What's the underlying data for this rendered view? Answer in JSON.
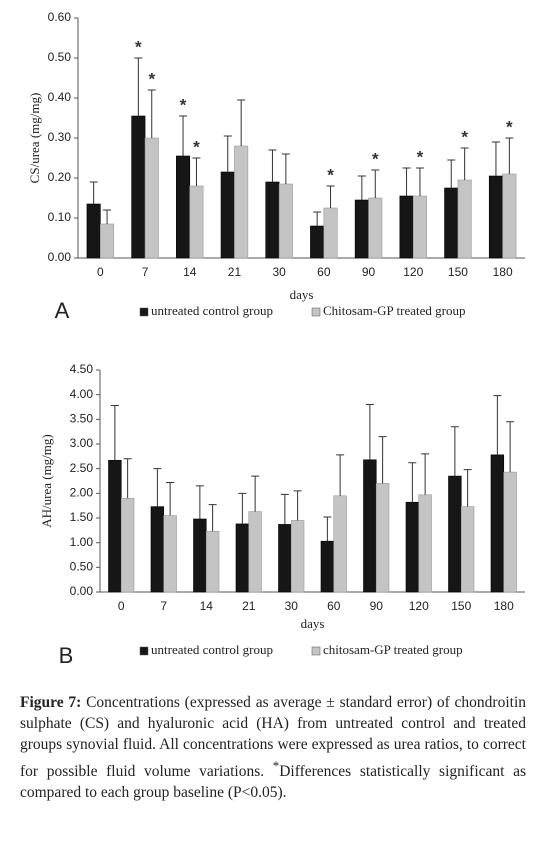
{
  "chart_data": [
    {
      "type": "bar",
      "panel": "A",
      "ylabel": "CS/urea (mg/mg)",
      "xlabel": "days",
      "categories": [
        "0",
        "7",
        "14",
        "21",
        "30",
        "60",
        "90",
        "120",
        "150",
        "180"
      ],
      "ylim": [
        0,
        0.6
      ],
      "yticks": [
        {
          "value": 0,
          "label": "0.00"
        },
        {
          "value": 0.1,
          "label": "0.10"
        },
        {
          "value": 0.2,
          "label": "0.20"
        },
        {
          "value": 0.3,
          "label": "0.30"
        },
        {
          "value": 0.4,
          "label": "0.40"
        },
        {
          "value": 0.5,
          "label": "0.50"
        },
        {
          "value": 0.6,
          "label": "0.60"
        }
      ],
      "series": [
        {
          "name": "untreated control group",
          "color": "#161616",
          "values": [
            0.135,
            0.355,
            0.255,
            0.215,
            0.19,
            0.08,
            0.145,
            0.155,
            0.175,
            0.205
          ],
          "errors": [
            0.055,
            0.145,
            0.1,
            0.09,
            0.08,
            0.035,
            0.06,
            0.07,
            0.07,
            0.085
          ],
          "markers": [
            null,
            "*",
            "*",
            null,
            null,
            null,
            null,
            null,
            null,
            null
          ]
        },
        {
          "name": "Chitosam-GP treated group",
          "color": "#c4c4c4",
          "values": [
            0.085,
            0.3,
            0.18,
            0.28,
            0.185,
            0.125,
            0.15,
            0.155,
            0.195,
            0.21
          ],
          "errors": [
            0.035,
            0.12,
            0.07,
            0.115,
            0.075,
            0.055,
            0.07,
            0.07,
            0.08,
            0.09
          ],
          "markers": [
            null,
            "*",
            "*",
            null,
            null,
            "*",
            "*",
            "*",
            "*",
            "*"
          ]
        }
      ]
    },
    {
      "type": "bar",
      "panel": "B",
      "ylabel": "AH/urea (mg/mg)",
      "xlabel": "days",
      "categories": [
        "0",
        "7",
        "14",
        "21",
        "30",
        "60",
        "90",
        "120",
        "150",
        "180"
      ],
      "ylim": [
        0,
        4.5
      ],
      "yticks": [
        {
          "value": 0,
          "label": "0.00"
        },
        {
          "value": 0.5,
          "label": "0.50"
        },
        {
          "value": 1,
          "label": "1.00"
        },
        {
          "value": 1.5,
          "label": "1.50"
        },
        {
          "value": 2,
          "label": "2.00"
        },
        {
          "value": 2.5,
          "label": "2.50"
        },
        {
          "value": 3,
          "label": "3.00"
        },
        {
          "value": 3.5,
          "label": "3.50"
        },
        {
          "value": 4,
          "label": "4.00"
        },
        {
          "value": 4.5,
          "label": "4.50"
        }
      ],
      "series": [
        {
          "name": "untreated control group",
          "color": "#161616",
          "values": [
            2.67,
            1.73,
            1.48,
            1.38,
            1.37,
            1.03,
            2.68,
            1.82,
            2.35,
            2.78
          ],
          "errors": [
            1.11,
            0.77,
            0.67,
            0.62,
            0.61,
            0.49,
            1.12,
            0.8,
            1.0,
            1.2
          ]
        },
        {
          "name": "chitosam-GP treated group",
          "color": "#c4c4c4",
          "values": [
            1.9,
            1.55,
            1.23,
            1.63,
            1.45,
            1.95,
            2.2,
            1.97,
            1.73,
            2.43
          ],
          "errors": [
            0.8,
            0.67,
            0.54,
            0.72,
            0.6,
            0.83,
            0.95,
            0.83,
            0.75,
            1.02
          ]
        }
      ]
    }
  ],
  "caption": {
    "label": "Figure 7:",
    "text": "Concentrations (expressed as average ± standard error) of chondroitin sulphate (CS) and hyaluronic acid (HA) from untreated control and treated groups synovial fluid. All concentrations were expressed as urea ratios, to correct for possible fluid volume variations.",
    "superscript": "*",
    "note": "Differences statistically significant as compared to each group baseline (P<0.05)."
  }
}
